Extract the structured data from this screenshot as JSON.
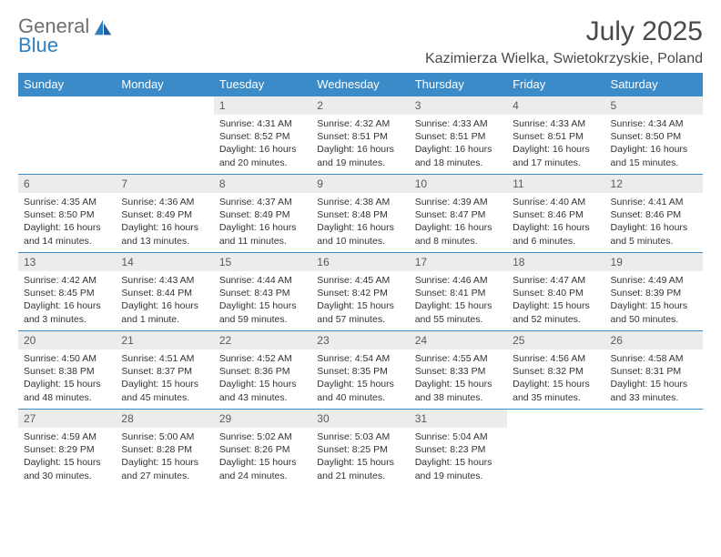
{
  "logo": {
    "text1": "General",
    "text2": "Blue"
  },
  "title": "July 2025",
  "location": "Kazimierza Wielka, Swietokrzyskie, Poland",
  "colors": {
    "header_bg": "#3b8bc9",
    "header_text": "#ffffff",
    "daynum_bg": "#ececec",
    "daynum_text": "#5a5a5a",
    "body_text": "#333333",
    "rule": "#3b8bc9",
    "logo_gray": "#6f6f6f",
    "logo_blue": "#2f7fbf"
  },
  "dayHeaders": [
    "Sunday",
    "Monday",
    "Tuesday",
    "Wednesday",
    "Thursday",
    "Friday",
    "Saturday"
  ],
  "weeks": [
    [
      {
        "empty": true
      },
      {
        "empty": true
      },
      {
        "num": "1",
        "sunrise": "4:31 AM",
        "sunset": "8:52 PM",
        "daylight": "16 hours and 20 minutes."
      },
      {
        "num": "2",
        "sunrise": "4:32 AM",
        "sunset": "8:51 PM",
        "daylight": "16 hours and 19 minutes."
      },
      {
        "num": "3",
        "sunrise": "4:33 AM",
        "sunset": "8:51 PM",
        "daylight": "16 hours and 18 minutes."
      },
      {
        "num": "4",
        "sunrise": "4:33 AM",
        "sunset": "8:51 PM",
        "daylight": "16 hours and 17 minutes."
      },
      {
        "num": "5",
        "sunrise": "4:34 AM",
        "sunset": "8:50 PM",
        "daylight": "16 hours and 15 minutes."
      }
    ],
    [
      {
        "num": "6",
        "sunrise": "4:35 AM",
        "sunset": "8:50 PM",
        "daylight": "16 hours and 14 minutes."
      },
      {
        "num": "7",
        "sunrise": "4:36 AM",
        "sunset": "8:49 PM",
        "daylight": "16 hours and 13 minutes."
      },
      {
        "num": "8",
        "sunrise": "4:37 AM",
        "sunset": "8:49 PM",
        "daylight": "16 hours and 11 minutes."
      },
      {
        "num": "9",
        "sunrise": "4:38 AM",
        "sunset": "8:48 PM",
        "daylight": "16 hours and 10 minutes."
      },
      {
        "num": "10",
        "sunrise": "4:39 AM",
        "sunset": "8:47 PM",
        "daylight": "16 hours and 8 minutes."
      },
      {
        "num": "11",
        "sunrise": "4:40 AM",
        "sunset": "8:46 PM",
        "daylight": "16 hours and 6 minutes."
      },
      {
        "num": "12",
        "sunrise": "4:41 AM",
        "sunset": "8:46 PM",
        "daylight": "16 hours and 5 minutes."
      }
    ],
    [
      {
        "num": "13",
        "sunrise": "4:42 AM",
        "sunset": "8:45 PM",
        "daylight": "16 hours and 3 minutes."
      },
      {
        "num": "14",
        "sunrise": "4:43 AM",
        "sunset": "8:44 PM",
        "daylight": "16 hours and 1 minute."
      },
      {
        "num": "15",
        "sunrise": "4:44 AM",
        "sunset": "8:43 PM",
        "daylight": "15 hours and 59 minutes."
      },
      {
        "num": "16",
        "sunrise": "4:45 AM",
        "sunset": "8:42 PM",
        "daylight": "15 hours and 57 minutes."
      },
      {
        "num": "17",
        "sunrise": "4:46 AM",
        "sunset": "8:41 PM",
        "daylight": "15 hours and 55 minutes."
      },
      {
        "num": "18",
        "sunrise": "4:47 AM",
        "sunset": "8:40 PM",
        "daylight": "15 hours and 52 minutes."
      },
      {
        "num": "19",
        "sunrise": "4:49 AM",
        "sunset": "8:39 PM",
        "daylight": "15 hours and 50 minutes."
      }
    ],
    [
      {
        "num": "20",
        "sunrise": "4:50 AM",
        "sunset": "8:38 PM",
        "daylight": "15 hours and 48 minutes."
      },
      {
        "num": "21",
        "sunrise": "4:51 AM",
        "sunset": "8:37 PM",
        "daylight": "15 hours and 45 minutes."
      },
      {
        "num": "22",
        "sunrise": "4:52 AM",
        "sunset": "8:36 PM",
        "daylight": "15 hours and 43 minutes."
      },
      {
        "num": "23",
        "sunrise": "4:54 AM",
        "sunset": "8:35 PM",
        "daylight": "15 hours and 40 minutes."
      },
      {
        "num": "24",
        "sunrise": "4:55 AM",
        "sunset": "8:33 PM",
        "daylight": "15 hours and 38 minutes."
      },
      {
        "num": "25",
        "sunrise": "4:56 AM",
        "sunset": "8:32 PM",
        "daylight": "15 hours and 35 minutes."
      },
      {
        "num": "26",
        "sunrise": "4:58 AM",
        "sunset": "8:31 PM",
        "daylight": "15 hours and 33 minutes."
      }
    ],
    [
      {
        "num": "27",
        "sunrise": "4:59 AM",
        "sunset": "8:29 PM",
        "daylight": "15 hours and 30 minutes."
      },
      {
        "num": "28",
        "sunrise": "5:00 AM",
        "sunset": "8:28 PM",
        "daylight": "15 hours and 27 minutes."
      },
      {
        "num": "29",
        "sunrise": "5:02 AM",
        "sunset": "8:26 PM",
        "daylight": "15 hours and 24 minutes."
      },
      {
        "num": "30",
        "sunrise": "5:03 AM",
        "sunset": "8:25 PM",
        "daylight": "15 hours and 21 minutes."
      },
      {
        "num": "31",
        "sunrise": "5:04 AM",
        "sunset": "8:23 PM",
        "daylight": "15 hours and 19 minutes."
      },
      {
        "empty": true
      },
      {
        "empty": true
      }
    ]
  ]
}
